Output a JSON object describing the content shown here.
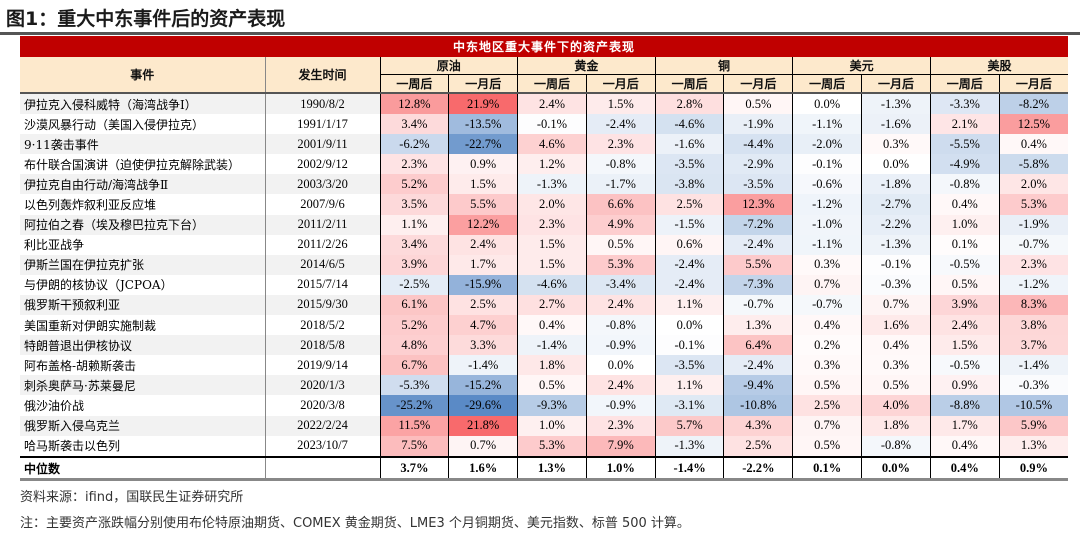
{
  "title": "图1：重大中东事件后的资产表现",
  "table": {
    "banner": "中东地区重大事件下的资产表现",
    "col_event": "事件",
    "col_date": "发生时间",
    "assets": [
      "原油",
      "黄金",
      "铜",
      "美元",
      "美股"
    ],
    "sub": [
      "一周后",
      "一月后"
    ],
    "rows": [
      {
        "event": "伊拉克入侵科威特（海湾战争I）",
        "date": "1990/8/2",
        "values": [
          "12.8%",
          "21.9%",
          "2.4%",
          "1.5%",
          "2.8%",
          "0.5%",
          "0.0%",
          "-1.3%",
          "-3.3%",
          "-8.2%"
        ]
      },
      {
        "event": "沙漠风暴行动（美国入侵伊拉克）",
        "date": "1991/1/17",
        "values": [
          "3.4%",
          "-13.5%",
          "-0.1%",
          "-2.4%",
          "-4.6%",
          "-1.9%",
          "-1.1%",
          "-1.6%",
          "2.1%",
          "12.5%"
        ]
      },
      {
        "event": "9·11袭击事件",
        "date": "2001/9/11",
        "values": [
          "-6.2%",
          "-22.7%",
          "4.6%",
          "2.3%",
          "-1.6%",
          "-4.4%",
          "-2.0%",
          "0.3%",
          "-5.5%",
          "0.4%"
        ]
      },
      {
        "event": "布什联合国演讲（迫使伊拉克解除武装）",
        "date": "2002/9/12",
        "values": [
          "2.3%",
          "0.9%",
          "1.2%",
          "-0.8%",
          "-3.5%",
          "-2.9%",
          "-0.1%",
          "0.0%",
          "-4.9%",
          "-5.8%"
        ]
      },
      {
        "event": "伊拉克自由行动/海湾战争Ⅱ",
        "date": "2003/3/20",
        "values": [
          "5.2%",
          "1.5%",
          "-1.3%",
          "-1.7%",
          "-3.8%",
          "-3.5%",
          "-0.6%",
          "-1.8%",
          "-0.8%",
          "2.0%"
        ]
      },
      {
        "event": "以色列轰炸叙利亚反应堆",
        "date": "2007/9/6",
        "values": [
          "3.5%",
          "5.5%",
          "2.0%",
          "6.6%",
          "2.5%",
          "12.3%",
          "-1.2%",
          "-2.7%",
          "0.4%",
          "5.3%"
        ]
      },
      {
        "event": "阿拉伯之春（埃及穆巴拉克下台）",
        "date": "2011/2/11",
        "values": [
          "1.1%",
          "12.2%",
          "2.3%",
          "4.9%",
          "-1.5%",
          "-7.2%",
          "-1.0%",
          "-2.2%",
          "1.0%",
          "-1.9%"
        ]
      },
      {
        "event": "利比亚战争",
        "date": "2011/2/26",
        "values": [
          "3.4%",
          "2.4%",
          "1.5%",
          "0.5%",
          "0.6%",
          "-2.4%",
          "-1.1%",
          "-1.3%",
          "0.1%",
          "-0.7%"
        ]
      },
      {
        "event": "伊斯兰国在伊拉克扩张",
        "date": "2014/6/5",
        "values": [
          "3.9%",
          "1.7%",
          "1.5%",
          "5.3%",
          "-2.4%",
          "5.5%",
          "0.3%",
          "-0.1%",
          "-0.5%",
          "2.3%"
        ]
      },
      {
        "event": "与伊朗的核协议（JCPOA）",
        "date": "2015/7/14",
        "values": [
          "-2.5%",
          "-15.9%",
          "-4.6%",
          "-3.4%",
          "-2.4%",
          "-7.3%",
          "0.7%",
          "-0.3%",
          "0.5%",
          "-1.2%"
        ]
      },
      {
        "event": "俄罗斯干预叙利亚",
        "date": "2015/9/30",
        "values": [
          "6.1%",
          "2.5%",
          "2.7%",
          "2.4%",
          "1.1%",
          "-0.7%",
          "-0.7%",
          "0.7%",
          "3.9%",
          "8.3%"
        ]
      },
      {
        "event": "美国重新对伊朗实施制裁",
        "date": "2018/5/2",
        "values": [
          "5.2%",
          "4.7%",
          "0.4%",
          "-0.8%",
          "0.0%",
          "1.3%",
          "0.4%",
          "1.6%",
          "2.4%",
          "3.8%"
        ]
      },
      {
        "event": "特朗普退出伊核协议",
        "date": "2018/5/8",
        "values": [
          "4.8%",
          "3.3%",
          "-1.4%",
          "-0.9%",
          "-0.1%",
          "6.4%",
          "0.2%",
          "0.4%",
          "1.5%",
          "3.7%"
        ]
      },
      {
        "event": "阿布盖格-胡赖斯袭击",
        "date": "2019/9/14",
        "values": [
          "6.7%",
          "-1.4%",
          "1.8%",
          "0.0%",
          "-3.5%",
          "-2.4%",
          "0.3%",
          "0.3%",
          "-0.5%",
          "-1.4%"
        ]
      },
      {
        "event": "刺杀奥萨马·苏莱曼尼",
        "date": "2020/1/3",
        "values": [
          "-5.3%",
          "-15.2%",
          "0.5%",
          "2.4%",
          "1.1%",
          "-9.4%",
          "0.5%",
          "0.5%",
          "0.9%",
          "-0.3%"
        ]
      },
      {
        "event": "俄沙油价战",
        "date": "2020/3/8",
        "values": [
          "-25.2%",
          "-29.6%",
          "-9.3%",
          "-0.9%",
          "-3.1%",
          "-10.8%",
          "2.5%",
          "4.0%",
          "-8.8%",
          "-10.5%"
        ]
      },
      {
        "event": "俄罗斯入侵乌克兰",
        "date": "2022/2/24",
        "values": [
          "11.5%",
          "21.8%",
          "1.0%",
          "2.3%",
          "5.7%",
          "4.3%",
          "0.7%",
          "1.8%",
          "1.7%",
          "5.9%"
        ]
      },
      {
        "event": "哈马斯袭击以色列",
        "date": "2023/10/7",
        "values": [
          "7.5%",
          "0.7%",
          "5.3%",
          "7.9%",
          "-1.3%",
          "2.5%",
          "0.5%",
          "-0.8%",
          "0.4%",
          "1.3%"
        ]
      }
    ],
    "median": {
      "label": "中位数",
      "values": [
        "3.7%",
        "1.6%",
        "1.3%",
        "1.0%",
        "-1.4%",
        "-2.2%",
        "0.1%",
        "0.0%",
        "0.4%",
        "0.9%"
      ]
    }
  },
  "colors": {
    "banner": "#c00000",
    "header": "#fde9cc",
    "positive": "#f8696b",
    "negative": "#5a8ac6"
  },
  "footer": {
    "source": "资料来源：ifind，国联民生证券研究所",
    "note": "注：主要资产涨跌幅分别使用布伦特原油期货、COMEX 黄金期货、LME3 个月铜期货、美元指数、标普 500 计算。"
  }
}
